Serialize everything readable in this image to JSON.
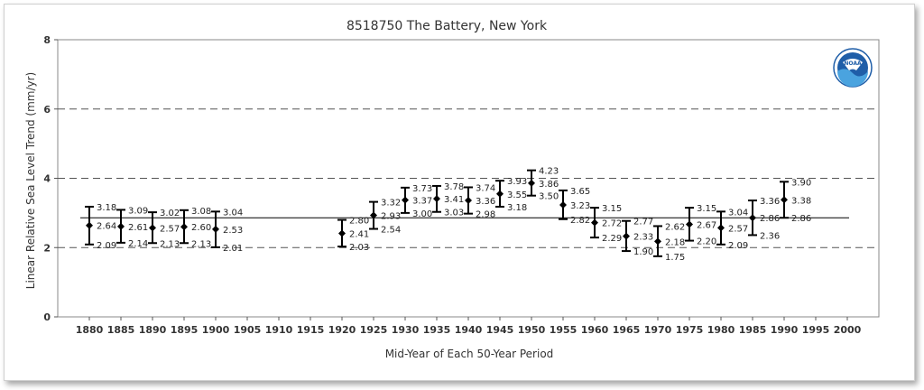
{
  "chart_data": {
    "type": "scatter",
    "title": "8518750 The Battery, New York",
    "xlabel": "Mid-Year of Each 50-Year Period",
    "ylabel": "Linear Relative Sea Level Trend (mm/yr)",
    "xlim": [
      1875,
      2005
    ],
    "ylim": [
      0,
      8
    ],
    "x_ticks": [
      1880,
      1885,
      1890,
      1895,
      1900,
      1905,
      1910,
      1915,
      1920,
      1925,
      1930,
      1935,
      1940,
      1945,
      1950,
      1955,
      1960,
      1965,
      1970,
      1975,
      1980,
      1985,
      1990,
      1995,
      2000
    ],
    "y_ticks": [
      0,
      2,
      4,
      6,
      8
    ],
    "gridlines_y": [
      2,
      4,
      6
    ],
    "grid_style": "dashed",
    "reference_line": 2.86,
    "points": [
      {
        "x": 1880,
        "y": 2.64,
        "upper": 3.18,
        "lower": 2.09,
        "labels": [
          "3.18",
          "2.64",
          "2.09"
        ]
      },
      {
        "x": 1885,
        "y": 2.61,
        "upper": 3.09,
        "lower": 2.14,
        "labels": [
          "3.09",
          "2.61",
          "2.14"
        ]
      },
      {
        "x": 1890,
        "y": 2.57,
        "upper": 3.02,
        "lower": 2.13,
        "labels": [
          "3.02",
          "2.57",
          "2.13"
        ]
      },
      {
        "x": 1895,
        "y": 2.6,
        "upper": 3.08,
        "lower": 2.13,
        "labels": [
          "3.08",
          "2.60",
          "2.13"
        ]
      },
      {
        "x": 1900,
        "y": 2.53,
        "upper": 3.04,
        "lower": 2.01,
        "labels": [
          "3.04",
          "2.53",
          "2.01"
        ]
      },
      {
        "x": 1920,
        "y": 2.41,
        "upper": 2.8,
        "lower": 2.03,
        "labels": [
          "2.80",
          "2.41",
          "2.03"
        ]
      },
      {
        "x": 1925,
        "y": 2.93,
        "upper": 3.32,
        "lower": 2.54,
        "labels": [
          "3.32",
          "2.93",
          "2.54"
        ]
      },
      {
        "x": 1930,
        "y": 3.37,
        "upper": 3.73,
        "lower": 3.0,
        "labels": [
          "3.73",
          "3.37",
          "3.00"
        ]
      },
      {
        "x": 1935,
        "y": 3.41,
        "upper": 3.78,
        "lower": 3.03,
        "labels": [
          "3.78",
          "3.41",
          "3.03"
        ]
      },
      {
        "x": 1940,
        "y": 3.36,
        "upper": 3.74,
        "lower": 2.98,
        "labels": [
          "3.74",
          "3.36",
          "2.98"
        ]
      },
      {
        "x": 1945,
        "y": 3.55,
        "upper": 3.93,
        "lower": 3.18,
        "labels": [
          "3.93",
          "3.55",
          "3.18"
        ]
      },
      {
        "x": 1950,
        "y": 3.86,
        "upper": 4.23,
        "lower": 3.5,
        "labels": [
          "4.23",
          "3.86",
          "3.50"
        ]
      },
      {
        "x": 1955,
        "y": 3.23,
        "upper": 3.65,
        "lower": 2.82,
        "labels": [
          "3.65",
          "3.23",
          "2.82"
        ]
      },
      {
        "x": 1960,
        "y": 2.72,
        "upper": 3.15,
        "lower": 2.29,
        "labels": [
          "3.15",
          "2.72",
          "2.29"
        ]
      },
      {
        "x": 1965,
        "y": 2.33,
        "upper": 2.77,
        "lower": 1.9,
        "labels": [
          "2.77",
          "2.33",
          "1.90"
        ]
      },
      {
        "x": 1970,
        "y": 2.18,
        "upper": 2.62,
        "lower": 1.75,
        "labels": [
          "2.62",
          "2.18",
          "1.75"
        ]
      },
      {
        "x": 1975,
        "y": 2.67,
        "upper": 3.15,
        "lower": 2.2,
        "labels": [
          "3.15",
          "2.67",
          "2.20"
        ]
      },
      {
        "x": 1980,
        "y": 2.57,
        "upper": 3.04,
        "lower": 2.09,
        "labels": [
          "3.04",
          "2.57",
          "2.09"
        ]
      },
      {
        "x": 1985,
        "y": 2.86,
        "upper": 3.36,
        "lower": 2.36,
        "labels": [
          "3.36",
          "2.86",
          "2.36"
        ]
      },
      {
        "x": 1990,
        "y": 3.38,
        "upper": 3.9,
        "lower": 2.86,
        "labels": [
          "3.90",
          "3.38",
          "2.86"
        ]
      }
    ],
    "logo_text": "NOAA",
    "colors": {
      "points": "#000000",
      "reference_line": "#000000",
      "grid": "#555555",
      "logo_blue": "#1f5ea8",
      "logo_light": "#4aa3df"
    }
  }
}
